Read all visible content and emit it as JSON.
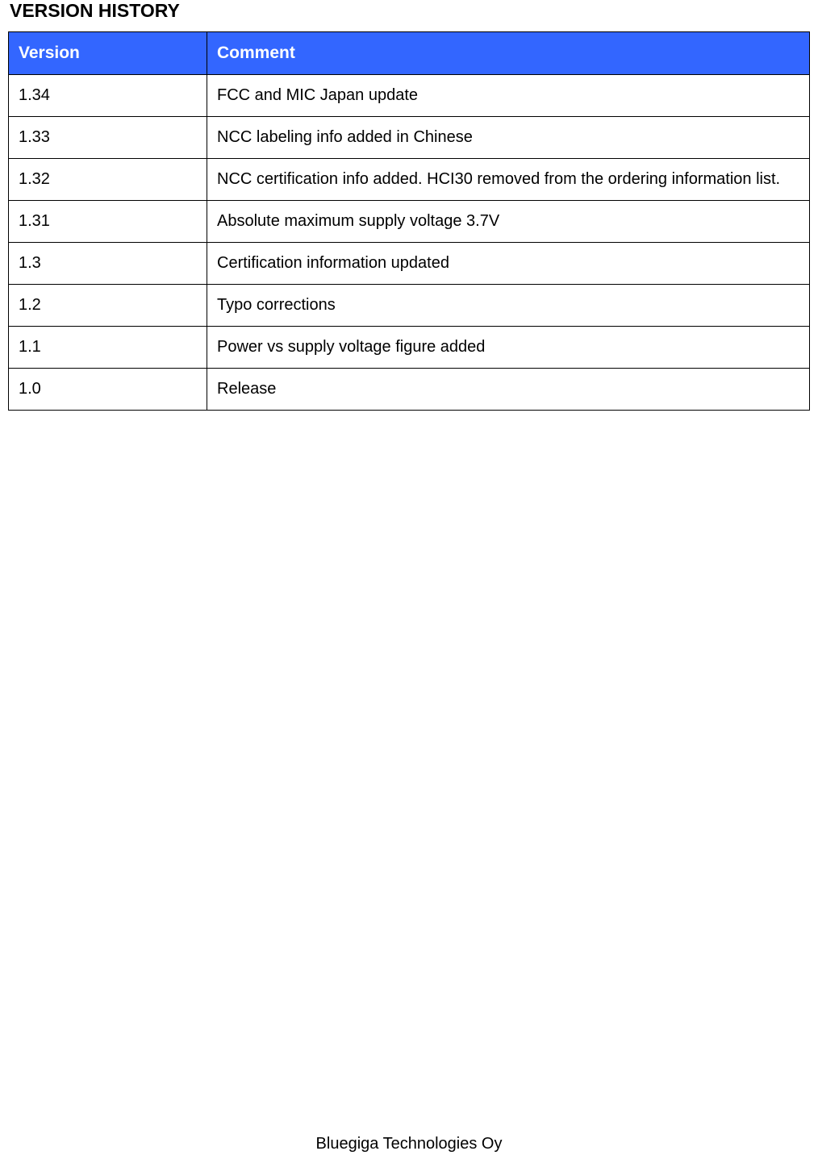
{
  "heading": "VERSION HISTORY",
  "table": {
    "header_bg": "#3366ff",
    "header_fg": "#ffffff",
    "border_color": "#000000",
    "columns": [
      "Version",
      "Comment"
    ],
    "rows": [
      [
        "1.34",
        "FCC and MIC Japan update"
      ],
      [
        "1.33",
        "NCC labeling info added in Chinese"
      ],
      [
        "1.32",
        "NCC certification info added. HCI30 removed from the ordering information list."
      ],
      [
        "1.31",
        "Absolute maximum supply voltage 3.7V"
      ],
      [
        "1.3",
        "Certification information updated"
      ],
      [
        "1.2",
        "Typo corrections"
      ],
      [
        "1.1",
        "Power vs supply voltage figure added"
      ],
      [
        "1.0",
        "Release"
      ]
    ]
  },
  "footer": "Bluegiga Technologies Oy"
}
